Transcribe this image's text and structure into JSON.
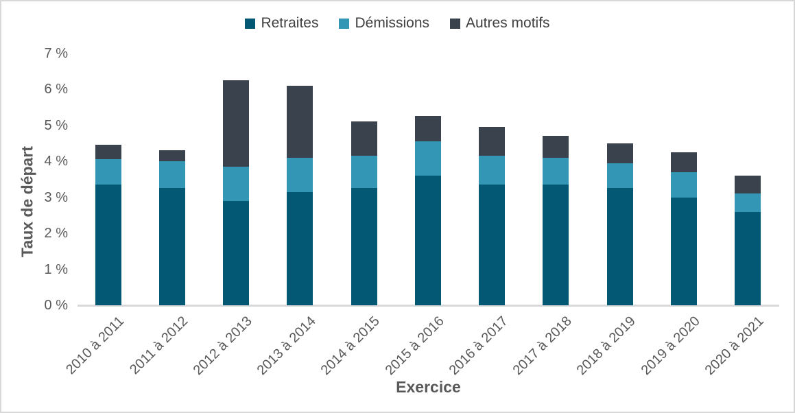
{
  "chart_data": {
    "type": "bar",
    "stacked": true,
    "title": "",
    "xlabel": "Exercice",
    "ylabel": "Taux de départ",
    "categories": [
      "2010 à 2011",
      "2011 à 2012",
      "2012 à 2013",
      "2013 à 2014",
      "2014 à 2015",
      "2015 à 2016",
      "2016 à 2017",
      "2017 à 2018",
      "2018 à 2019",
      "2019 à 2020",
      "2020 à 2021"
    ],
    "series": [
      {
        "name": "Retraites",
        "color": "#035973",
        "values": [
          3.35,
          3.25,
          2.9,
          3.15,
          3.25,
          3.6,
          3.35,
          3.35,
          3.25,
          3.0,
          2.6
        ]
      },
      {
        "name": "Démissions",
        "color": "#3296b4",
        "values": [
          0.7,
          0.75,
          0.95,
          0.95,
          0.9,
          0.95,
          0.8,
          0.75,
          0.7,
          0.7,
          0.5
        ]
      },
      {
        "name": "Autres motifs",
        "color": "#39424d",
        "values": [
          0.4,
          0.3,
          2.4,
          2.0,
          0.95,
          0.7,
          0.8,
          0.6,
          0.55,
          0.55,
          0.5
        ]
      }
    ],
    "y_ticks": [
      "0 %",
      "1 %",
      "2 %",
      "3 %",
      "4 %",
      "5 %",
      "6 %",
      "7 %"
    ],
    "ylim": [
      0,
      7
    ],
    "grid": false,
    "legend_position": "top-center"
  },
  "colors": {
    "axis_line": "#d9d9d9",
    "tick_label": "#595959",
    "axis_title": "#595959",
    "legend_text": "#404040",
    "canvas_border": "#d8d8d8",
    "background": "#ffffff"
  }
}
